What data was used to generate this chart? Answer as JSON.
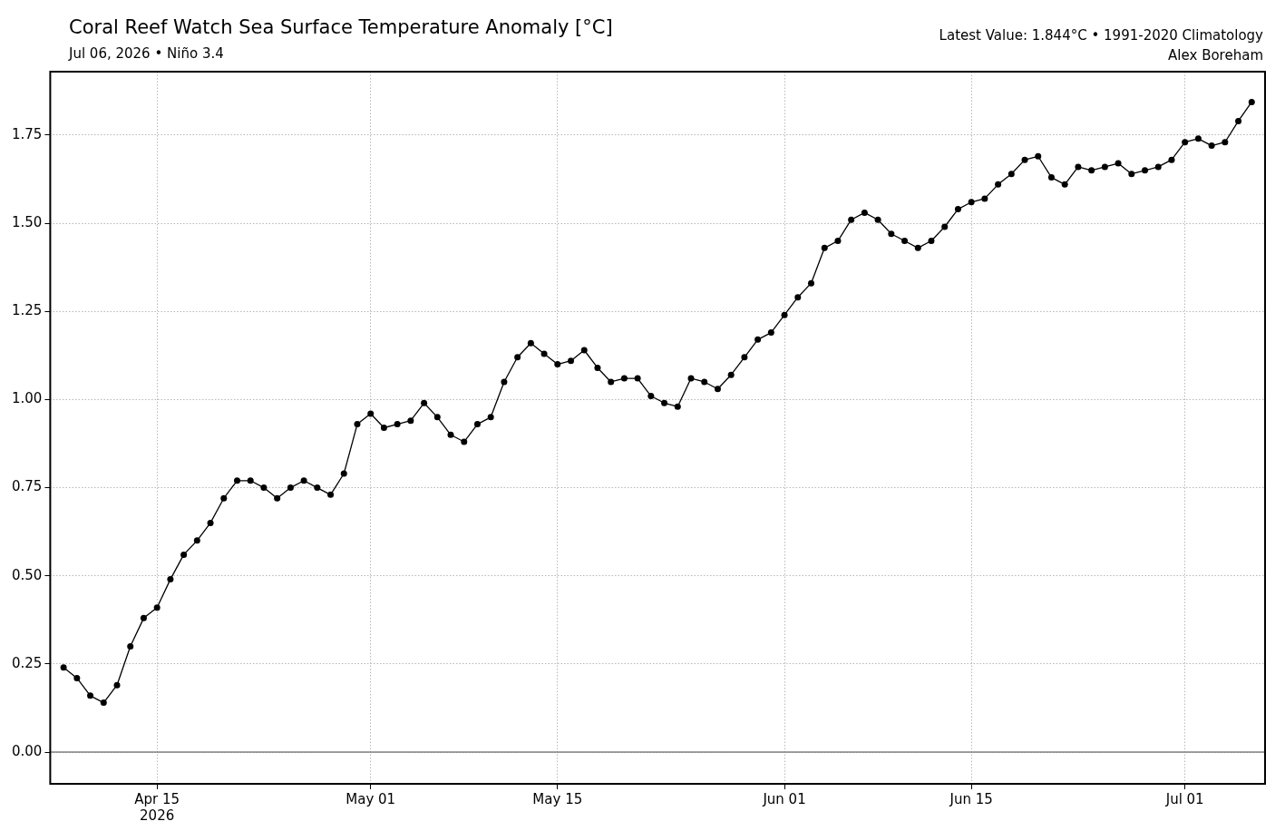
{
  "chart_data": {
    "type": "line",
    "title": "Coral Reef Watch Sea Surface Temperature Anomaly [°C]",
    "subtitle": "Jul 06, 2026 • Niño 3.4",
    "annotations": [
      "Latest Value: 1.844°C • 1991-2020 Climatology",
      "Alex Boreham"
    ],
    "x": [
      "2026-04-08",
      "2026-04-09",
      "2026-04-10",
      "2026-04-11",
      "2026-04-12",
      "2026-04-13",
      "2026-04-14",
      "2026-04-15",
      "2026-04-16",
      "2026-04-17",
      "2026-04-18",
      "2026-04-19",
      "2026-04-20",
      "2026-04-21",
      "2026-04-22",
      "2026-04-23",
      "2026-04-24",
      "2026-04-25",
      "2026-04-26",
      "2026-04-27",
      "2026-04-28",
      "2026-04-29",
      "2026-04-30",
      "2026-05-01",
      "2026-05-02",
      "2026-05-03",
      "2026-05-04",
      "2026-05-05",
      "2026-05-06",
      "2026-05-07",
      "2026-05-08",
      "2026-05-09",
      "2026-05-10",
      "2026-05-11",
      "2026-05-12",
      "2026-05-13",
      "2026-05-14",
      "2026-05-15",
      "2026-05-16",
      "2026-05-17",
      "2026-05-18",
      "2026-05-19",
      "2026-05-20",
      "2026-05-21",
      "2026-05-22",
      "2026-05-23",
      "2026-05-24",
      "2026-05-25",
      "2026-05-26",
      "2026-05-27",
      "2026-05-28",
      "2026-05-29",
      "2026-05-30",
      "2026-05-31",
      "2026-06-01",
      "2026-06-02",
      "2026-06-03",
      "2026-06-04",
      "2026-06-05",
      "2026-06-06",
      "2026-06-07",
      "2026-06-08",
      "2026-06-09",
      "2026-06-10",
      "2026-06-11",
      "2026-06-12",
      "2026-06-13",
      "2026-06-14",
      "2026-06-15",
      "2026-06-16",
      "2026-06-17",
      "2026-06-18",
      "2026-06-19",
      "2026-06-20",
      "2026-06-21",
      "2026-06-22",
      "2026-06-23",
      "2026-06-24",
      "2026-06-25",
      "2026-06-26",
      "2026-06-27",
      "2026-06-28",
      "2026-06-29",
      "2026-06-30",
      "2026-07-01",
      "2026-07-02",
      "2026-07-03",
      "2026-07-04",
      "2026-07-05",
      "2026-07-06"
    ],
    "series": [
      {
        "color": "#000000",
        "values": [
          0.24,
          0.21,
          0.16,
          0.14,
          0.19,
          0.3,
          0.38,
          0.41,
          0.49,
          0.56,
          0.6,
          0.65,
          0.72,
          0.77,
          0.77,
          0.75,
          0.72,
          0.75,
          0.77,
          0.75,
          0.73,
          0.79,
          0.93,
          0.96,
          0.92,
          0.93,
          0.94,
          0.99,
          0.95,
          0.9,
          0.88,
          0.93,
          0.95,
          1.05,
          1.12,
          1.16,
          1.13,
          1.1,
          1.11,
          1.14,
          1.09,
          1.05,
          1.06,
          1.06,
          1.01,
          0.99,
          0.98,
          1.06,
          1.05,
          1.03,
          1.07,
          1.12,
          1.17,
          1.19,
          1.24,
          1.29,
          1.33,
          1.43,
          1.45,
          1.51,
          1.53,
          1.51,
          1.47,
          1.45,
          1.43,
          1.45,
          1.49,
          1.54,
          1.56,
          1.57,
          1.61,
          1.64,
          1.68,
          1.69,
          1.63,
          1.61,
          1.66,
          1.65,
          1.66,
          1.67,
          1.64,
          1.65,
          1.66,
          1.68,
          1.73,
          1.74,
          1.72,
          1.73,
          1.79,
          1.844
        ]
      }
    ],
    "xlim": [
      "2026-04-07",
      "2026-07-07"
    ],
    "xticks": [
      {
        "value": "2026-04-15",
        "label": "Apr 15\n2026"
      },
      {
        "value": "2026-05-01",
        "label": "May 01"
      },
      {
        "value": "2026-05-15",
        "label": "May 15"
      },
      {
        "value": "2026-06-01",
        "label": "Jun 01"
      },
      {
        "value": "2026-06-15",
        "label": "Jun 15"
      },
      {
        "value": "2026-07-01",
        "label": "Jul 01"
      }
    ],
    "ylim": [
      -0.09,
      1.93
    ],
    "yticks": [
      {
        "value": 0,
        "label": "0.00"
      },
      {
        "value": 0.25,
        "label": "0.25"
      },
      {
        "value": 0.5,
        "label": "0.50"
      },
      {
        "value": 0.75,
        "label": "0.75"
      },
      {
        "value": 1,
        "label": "1.00"
      },
      {
        "value": 1.25,
        "label": "1.25"
      },
      {
        "value": 1.5,
        "label": "1.50"
      },
      {
        "value": 1.75,
        "label": "1.75"
      }
    ],
    "ref_lines": [
      {
        "axis": "y",
        "value": 0,
        "color": "#808080"
      }
    ],
    "grid": true,
    "marker": "circle",
    "line_style": "solid"
  }
}
